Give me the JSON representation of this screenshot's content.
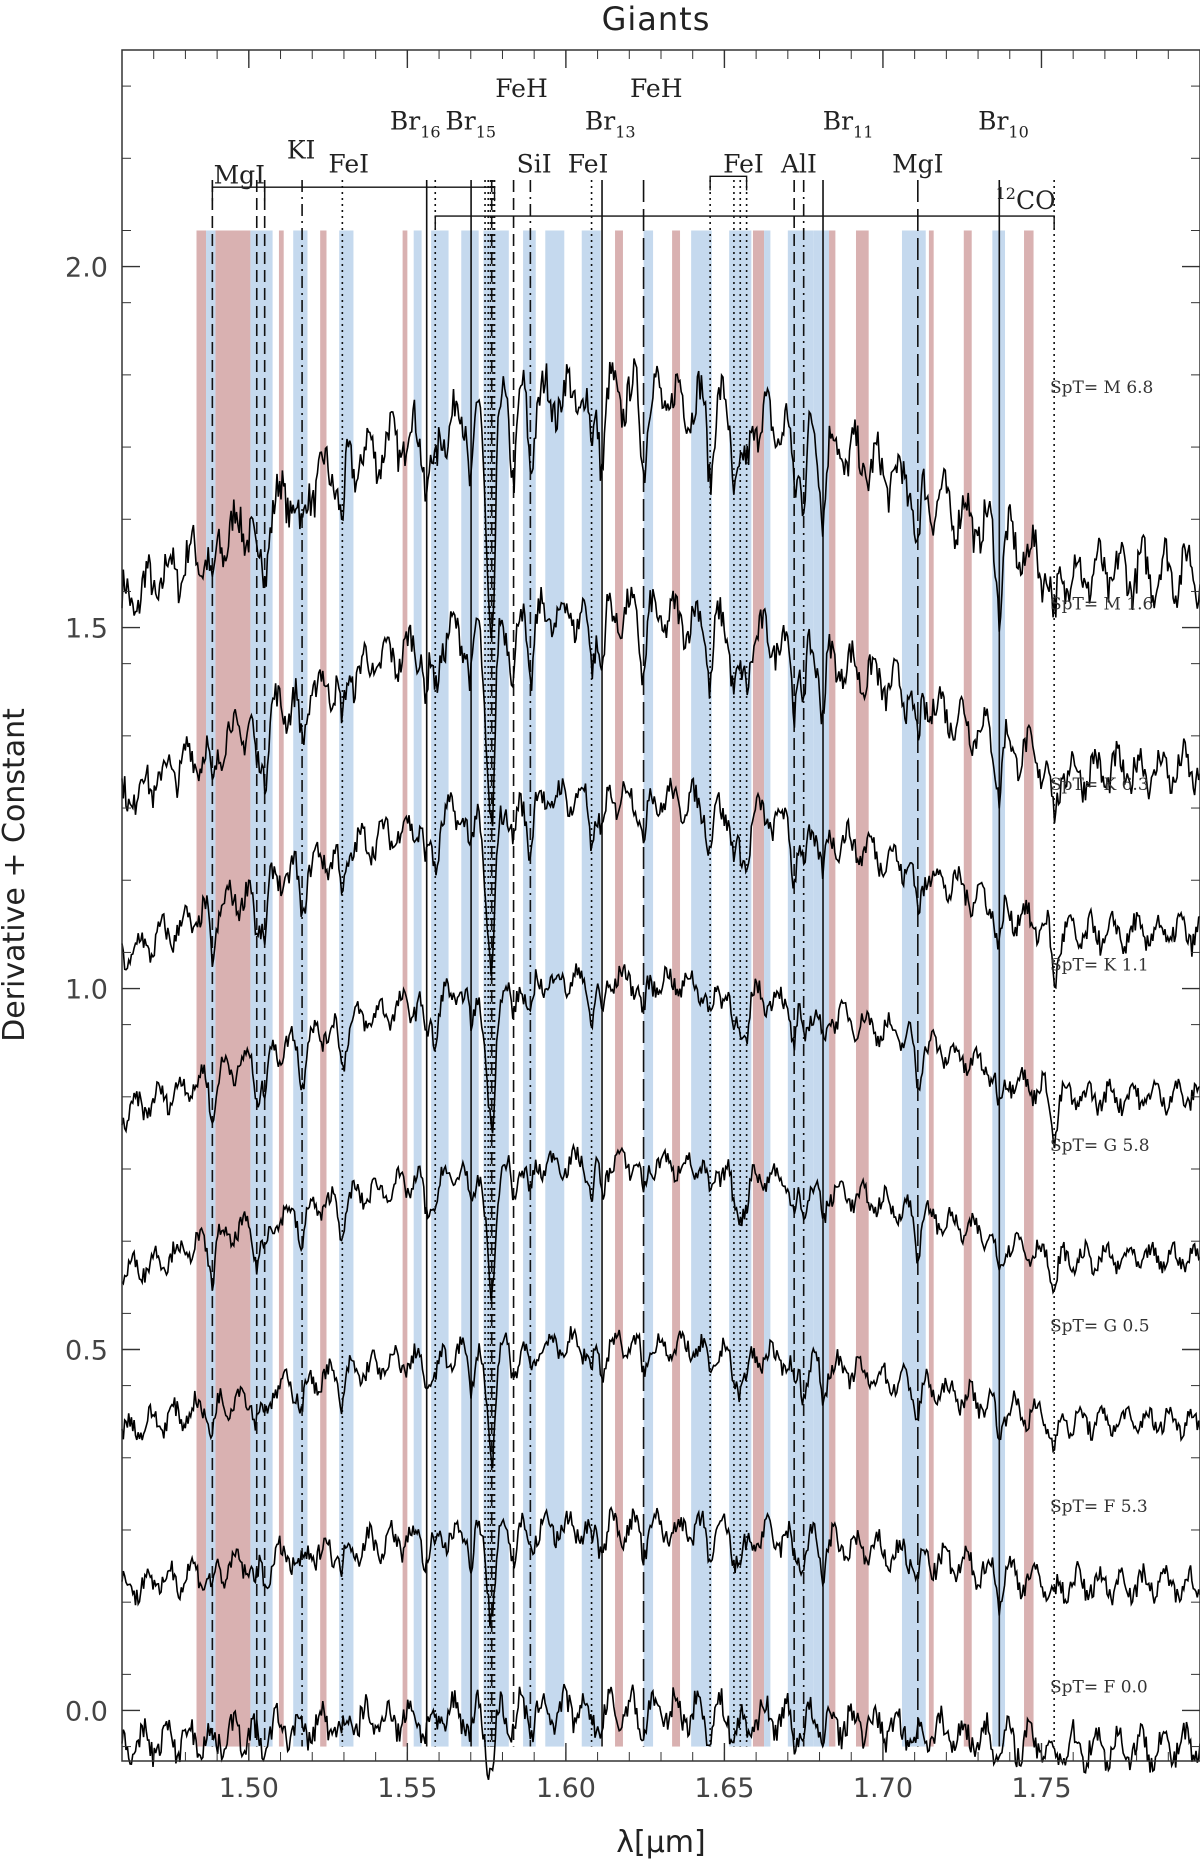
{
  "chart_data": {
    "type": "line",
    "title": "Giants",
    "xlabel": "λ[μm]",
    "ylabel": "Derivative + Constant",
    "xlim": [
      1.46,
      1.8
    ],
    "ylim": [
      -0.07,
      2.3
    ],
    "xticks": [
      1.5,
      1.55,
      1.6,
      1.65,
      1.7,
      1.75
    ],
    "yticks": [
      0.0,
      0.5,
      1.0,
      1.5,
      2.0
    ],
    "xtick_labels": [
      "1.50",
      "1.55",
      "1.60",
      "1.65",
      "1.70",
      "1.75"
    ],
    "ytick_labels": [
      "0.0",
      "0.5",
      "1.0",
      "1.5",
      "2.0"
    ],
    "grid": false,
    "band_ylim": [
      -0.05,
      2.05
    ],
    "bands": [
      {
        "x0": 1.4835,
        "x1": 1.4865,
        "color": "#d9b1b1"
      },
      {
        "x0": 1.4865,
        "x1": 1.4895,
        "color": "#c5d9ee"
      },
      {
        "x0": 1.4895,
        "x1": 1.5005,
        "color": "#d9b1b1"
      },
      {
        "x0": 1.5005,
        "x1": 1.5075,
        "color": "#c5d9ee"
      },
      {
        "x0": 1.5095,
        "x1": 1.511,
        "color": "#d9b1b1"
      },
      {
        "x0": 1.514,
        "x1": 1.5185,
        "color": "#c5d9ee"
      },
      {
        "x0": 1.5225,
        "x1": 1.5245,
        "color": "#d9b1b1"
      },
      {
        "x0": 1.5285,
        "x1": 1.533,
        "color": "#c5d9ee"
      },
      {
        "x0": 1.5485,
        "x1": 1.55,
        "color": "#d9b1b1"
      },
      {
        "x0": 1.552,
        "x1": 1.5545,
        "color": "#c5d9ee"
      },
      {
        "x0": 1.5575,
        "x1": 1.563,
        "color": "#c5d9ee"
      },
      {
        "x0": 1.567,
        "x1": 1.5725,
        "color": "#c5d9ee"
      },
      {
        "x0": 1.574,
        "x1": 1.582,
        "color": "#c5d9ee"
      },
      {
        "x0": 1.5865,
        "x1": 1.5905,
        "color": "#c5d9ee"
      },
      {
        "x0": 1.5935,
        "x1": 1.5995,
        "color": "#c5d9ee"
      },
      {
        "x0": 1.605,
        "x1": 1.611,
        "color": "#c5d9ee"
      },
      {
        "x0": 1.6155,
        "x1": 1.618,
        "color": "#d9b1b1"
      },
      {
        "x0": 1.6245,
        "x1": 1.6275,
        "color": "#c5d9ee"
      },
      {
        "x0": 1.6335,
        "x1": 1.636,
        "color": "#d9b1b1"
      },
      {
        "x0": 1.6395,
        "x1": 1.646,
        "color": "#c5d9ee"
      },
      {
        "x0": 1.6515,
        "x1": 1.6535,
        "color": "#c5d9ee"
      },
      {
        "x0": 1.6535,
        "x1": 1.6585,
        "color": "#c5d9ee"
      },
      {
        "x0": 1.659,
        "x1": 1.6625,
        "color": "#d9b1b1"
      },
      {
        "x0": 1.6625,
        "x1": 1.6645,
        "color": "#c5d9ee"
      },
      {
        "x0": 1.67,
        "x1": 1.678,
        "color": "#c5d9ee"
      },
      {
        "x0": 1.678,
        "x1": 1.683,
        "color": "#c5d9ee"
      },
      {
        "x0": 1.683,
        "x1": 1.685,
        "color": "#d9b1b1"
      },
      {
        "x0": 1.6915,
        "x1": 1.6955,
        "color": "#d9b1b1"
      },
      {
        "x0": 1.706,
        "x1": 1.7135,
        "color": "#c5d9ee"
      },
      {
        "x0": 1.7145,
        "x1": 1.716,
        "color": "#d9b1b1"
      },
      {
        "x0": 1.7255,
        "x1": 1.728,
        "color": "#d9b1b1"
      },
      {
        "x0": 1.7345,
        "x1": 1.7385,
        "color": "#c5d9ee"
      },
      {
        "x0": 1.7445,
        "x1": 1.7475,
        "color": "#d9b1b1"
      }
    ],
    "lines": [
      {
        "x": 1.4885,
        "style": "dash"
      },
      {
        "x": 1.5025,
        "style": "dash"
      },
      {
        "x": 1.505,
        "style": "dash"
      },
      {
        "x": 1.5168,
        "style": "dashdot"
      },
      {
        "x": 1.5295,
        "style": "dot"
      },
      {
        "x": 1.5561,
        "style": "solid"
      },
      {
        "x": 1.5588,
        "style": "dot"
      },
      {
        "x": 1.5701,
        "style": "solid"
      },
      {
        "x": 1.5745,
        "style": "dot"
      },
      {
        "x": 1.5755,
        "style": "dot"
      },
      {
        "x": 1.5762,
        "style": "dot"
      },
      {
        "x": 1.5766,
        "style": "dash"
      },
      {
        "x": 1.577,
        "style": "dot"
      },
      {
        "x": 1.5775,
        "style": "dot"
      },
      {
        "x": 1.5835,
        "style": "dash"
      },
      {
        "x": 1.5888,
        "style": "dashdot"
      },
      {
        "x": 1.6081,
        "style": "dot"
      },
      {
        "x": 1.6114,
        "style": "solid"
      },
      {
        "x": 1.6245,
        "style": "longdash"
      },
      {
        "x": 1.6455,
        "style": "dot"
      },
      {
        "x": 1.653,
        "style": "dot"
      },
      {
        "x": 1.655,
        "style": "dot"
      },
      {
        "x": 1.657,
        "style": "dot"
      },
      {
        "x": 1.672,
        "style": "dash"
      },
      {
        "x": 1.675,
        "style": "dashdot"
      },
      {
        "x": 1.6811,
        "style": "solid"
      },
      {
        "x": 1.711,
        "style": "longdash"
      },
      {
        "x": 1.7367,
        "style": "solid"
      },
      {
        "x": 1.754,
        "style": "dot"
      }
    ],
    "line_labels": [
      {
        "text": "MgI",
        "x": 1.497,
        "y": 2.115
      },
      {
        "text": "KI",
        "x": 1.5165,
        "y": 2.15
      },
      {
        "text": "FeI",
        "x": 1.5315,
        "y": 2.13
      },
      {
        "text": "Br",
        "sub": "16",
        "x": 1.5525,
        "y": 2.19
      },
      {
        "text": "Br",
        "sub": "15",
        "x": 1.57,
        "y": 2.19
      },
      {
        "text": "FeH",
        "x": 1.586,
        "y": 2.235
      },
      {
        "text": "SiI",
        "x": 1.59,
        "y": 2.13
      },
      {
        "text": "FeI",
        "x": 1.607,
        "y": 2.13
      },
      {
        "text": "Br",
        "sub": "13",
        "x": 1.614,
        "y": 2.19
      },
      {
        "text": "FeH",
        "x": 1.6285,
        "y": 2.235
      },
      {
        "text": "FeI",
        "x": 1.656,
        "y": 2.13
      },
      {
        "text": "AlI",
        "x": 1.6735,
        "y": 2.13
      },
      {
        "text": "Br",
        "sub": "11",
        "x": 1.689,
        "y": 2.19
      },
      {
        "text": "MgI",
        "x": 1.711,
        "y": 2.13
      },
      {
        "text": "Br",
        "sub": "10",
        "x": 1.738,
        "y": 2.19
      },
      {
        "text": "CO",
        "sup": "12",
        "x": 1.745,
        "y": 2.08
      }
    ],
    "brackets": [
      {
        "x0": 1.4885,
        "x1": 1.505,
        "y": 2.11
      },
      {
        "x0": 1.505,
        "x1": 1.5775,
        "y": 2.11
      },
      {
        "x0": 1.5588,
        "x1": 1.754,
        "y": 2.07
      },
      {
        "x0": 1.6455,
        "x1": 1.657,
        "y": 2.125
      }
    ],
    "series": [
      {
        "name": "SpT= M 6.8",
        "offset": 1.8
      },
      {
        "name": "SpT= M 1.6",
        "offset": 1.5
      },
      {
        "name": "SpT= K 6.3",
        "offset": 1.25
      },
      {
        "name": "SpT= K 1.1",
        "offset": 1.0
      },
      {
        "name": "SpT= G 5.8",
        "offset": 0.75
      },
      {
        "name": "SpT= G 0.5",
        "offset": 0.5
      },
      {
        "name": "SpT= F 5.3",
        "offset": 0.25
      },
      {
        "name": "SpT= F 0.0",
        "offset": 0.0
      }
    ]
  }
}
